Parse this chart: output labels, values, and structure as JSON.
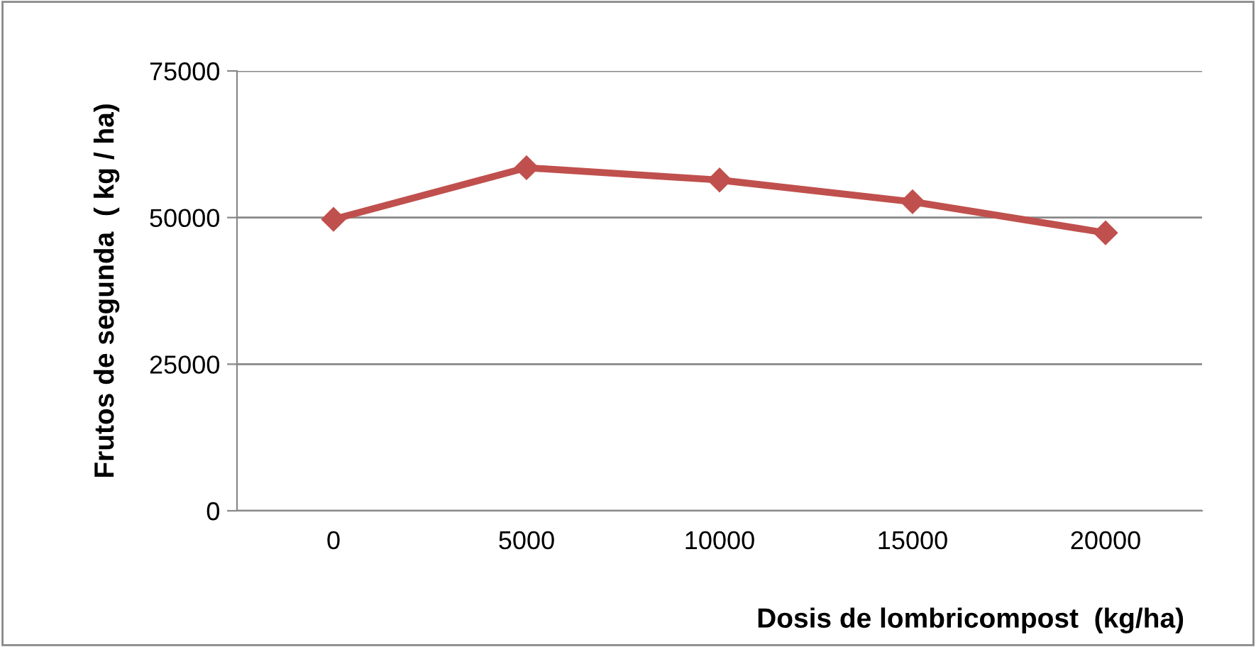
{
  "chart_data": {
    "type": "line",
    "xlabel": "Dosis de lombricompost  (kg/ha)",
    "ylabel": "Frutos de segunda  ( kg / ha)",
    "categories": [
      "0",
      "5000",
      "10000",
      "15000",
      "20000"
    ],
    "series": [
      {
        "color": "#c0504d",
        "values": [
          49700,
          58500,
          56400,
          52700,
          47400
        ]
      }
    ],
    "ylim": [
      0,
      75000
    ],
    "yticks": [
      0,
      25000,
      50000,
      75000
    ],
    "grid": "y",
    "marker": "diamond",
    "line_style": "solid"
  }
}
